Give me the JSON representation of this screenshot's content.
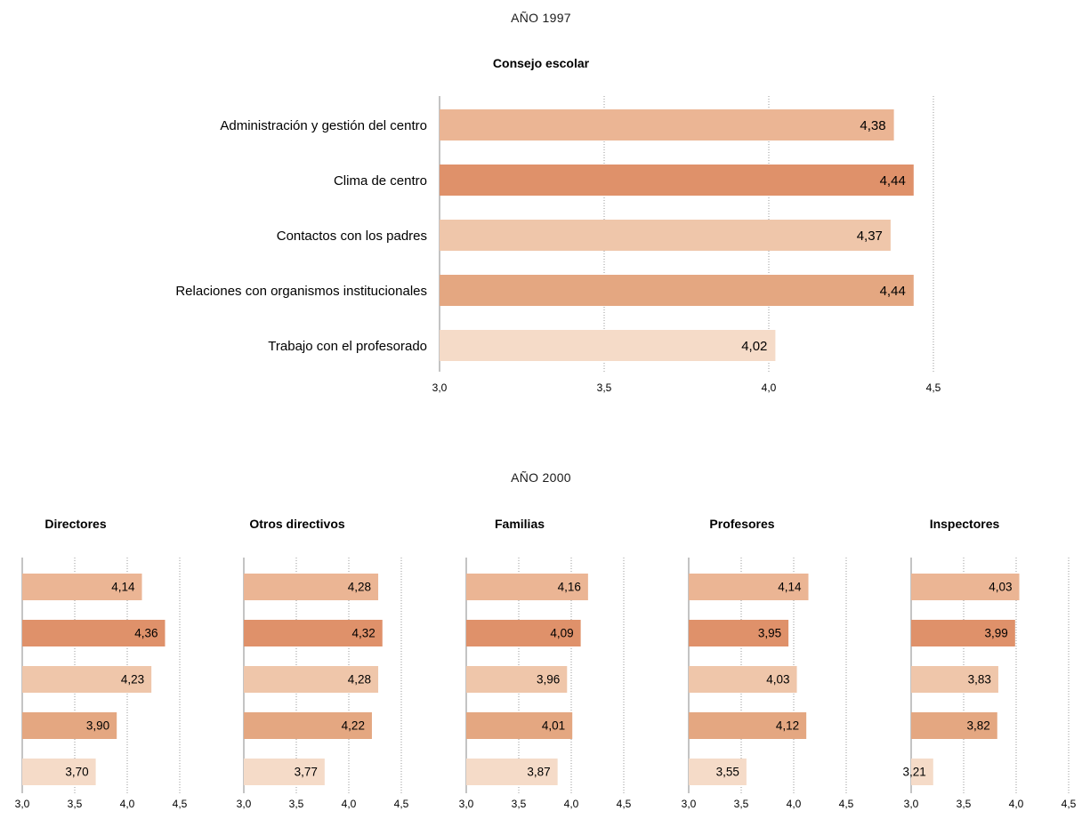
{
  "section_1997": {
    "heading": "AÑO 1997"
  },
  "section_2000": {
    "heading": "AÑO 2000"
  },
  "colors": [
    "#ebb594",
    "#df916a",
    "#efc6aa",
    "#e4a781",
    "#f5dbc8"
  ],
  "chart_data": [
    {
      "type": "bar",
      "orientation": "horizontal",
      "title": "Consejo escolar",
      "categories": [
        "Administración y gestión del centro",
        "Clima de centro",
        "Contactos con los padres",
        "Relaciones con organismos institucionales",
        "Trabajo con el profesorado"
      ],
      "values": [
        4.38,
        4.44,
        4.37,
        4.44,
        4.02
      ],
      "value_labels": [
        "4,38",
        "4,44",
        "4,37",
        "4,44",
        "4,02"
      ],
      "xlim": [
        3.0,
        4.5
      ],
      "ticks": [
        "3,0",
        "3,5",
        "4,0",
        "4,5"
      ],
      "grid": true
    },
    {
      "type": "bar",
      "orientation": "horizontal",
      "title": "Directores",
      "values": [
        4.14,
        4.36,
        4.23,
        3.9,
        3.7
      ],
      "value_labels": [
        "4,14",
        "4,36",
        "4,23",
        "3,90",
        "3,70"
      ],
      "xlim": [
        3.0,
        4.5
      ],
      "ticks": [
        "3,0",
        "3,5",
        "4,0",
        "4,5"
      ],
      "grid": true
    },
    {
      "type": "bar",
      "orientation": "horizontal",
      "title": "Otros directivos",
      "values": [
        4.28,
        4.32,
        4.28,
        4.22,
        3.77
      ],
      "value_labels": [
        "4,28",
        "4,32",
        "4,28",
        "4,22",
        "3,77"
      ],
      "xlim": [
        3.0,
        4.5
      ],
      "ticks": [
        "3,0",
        "3,5",
        "4,0",
        "4,5"
      ],
      "grid": true
    },
    {
      "type": "bar",
      "orientation": "horizontal",
      "title": "Familias",
      "values": [
        4.16,
        4.09,
        3.96,
        4.01,
        3.87
      ],
      "value_labels": [
        "4,16",
        "4,09",
        "3,96",
        "4,01",
        "3,87"
      ],
      "xlim": [
        3.0,
        4.5
      ],
      "ticks": [
        "3,0",
        "3,5",
        "4,0",
        "4,5"
      ],
      "grid": true
    },
    {
      "type": "bar",
      "orientation": "horizontal",
      "title": "Profesores",
      "values": [
        4.14,
        3.95,
        4.03,
        4.12,
        3.55
      ],
      "value_labels": [
        "4,14",
        "3,95",
        "4,03",
        "4,12",
        "3,55"
      ],
      "xlim": [
        3.0,
        4.5
      ],
      "ticks": [
        "3,0",
        "3,5",
        "4,0",
        "4,5"
      ],
      "grid": true
    },
    {
      "type": "bar",
      "orientation": "horizontal",
      "title": "Inspectores",
      "values": [
        4.03,
        3.99,
        3.83,
        3.82,
        3.21
      ],
      "value_labels": [
        "4,03",
        "3,99",
        "3,83",
        "3,82",
        "3,21"
      ],
      "xlim": [
        3.0,
        4.5
      ],
      "ticks": [
        "3,0",
        "3,5",
        "4,0",
        "4,5"
      ],
      "grid": true
    }
  ]
}
